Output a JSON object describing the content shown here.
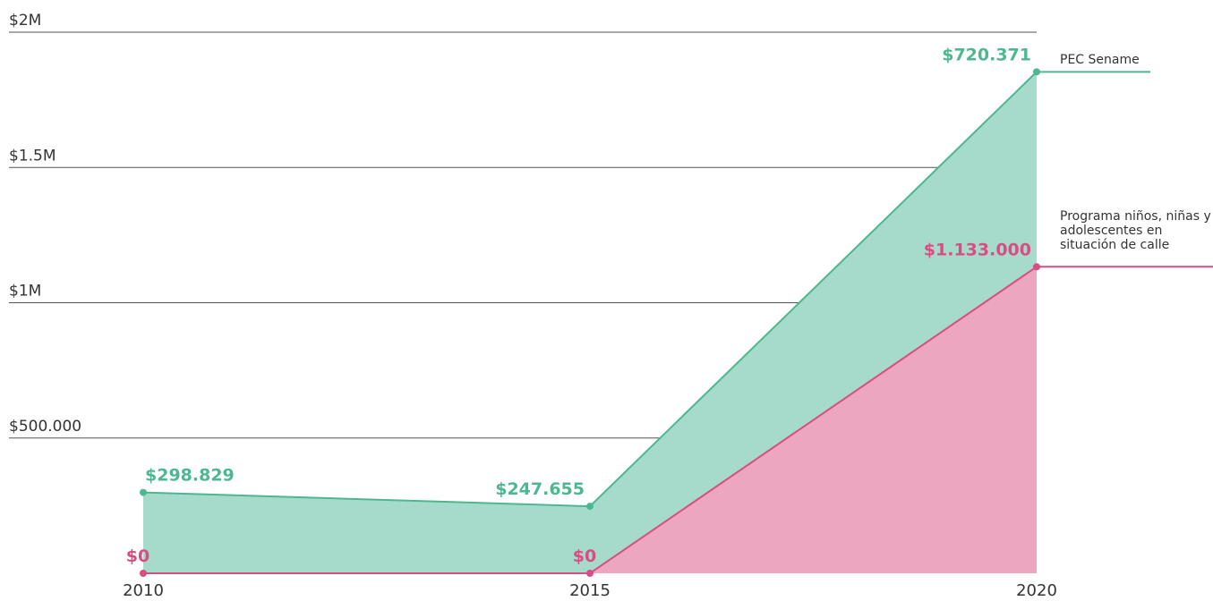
{
  "chart_data": {
    "type": "stacked_area",
    "categories": [
      "2010",
      "2015",
      "2020"
    ],
    "series": [
      {
        "name": "Programa niños, niñas y adolescentes en situación de calle",
        "color": "#d94d84",
        "fill": "#eda6c0",
        "values": [
          0,
          0,
          1133000
        ],
        "value_labels": [
          "$0",
          "$0",
          "$1.133.000"
        ]
      },
      {
        "name": "PEC Sename",
        "color": "#4db88f",
        "fill": "#a6dbcb",
        "values": [
          298829,
          247655,
          720371
        ],
        "value_labels": [
          "$298.829",
          "$247.655",
          "$720.371"
        ]
      }
    ],
    "ylim": [
      0,
      2000000
    ],
    "yticks": [
      {
        "value": 500000,
        "label": "$500.000"
      },
      {
        "value": 1000000,
        "label": "$1M"
      },
      {
        "value": 1500000,
        "label": "$1.5M"
      },
      {
        "value": 2000000,
        "label": "$2M"
      }
    ],
    "grid": true
  }
}
